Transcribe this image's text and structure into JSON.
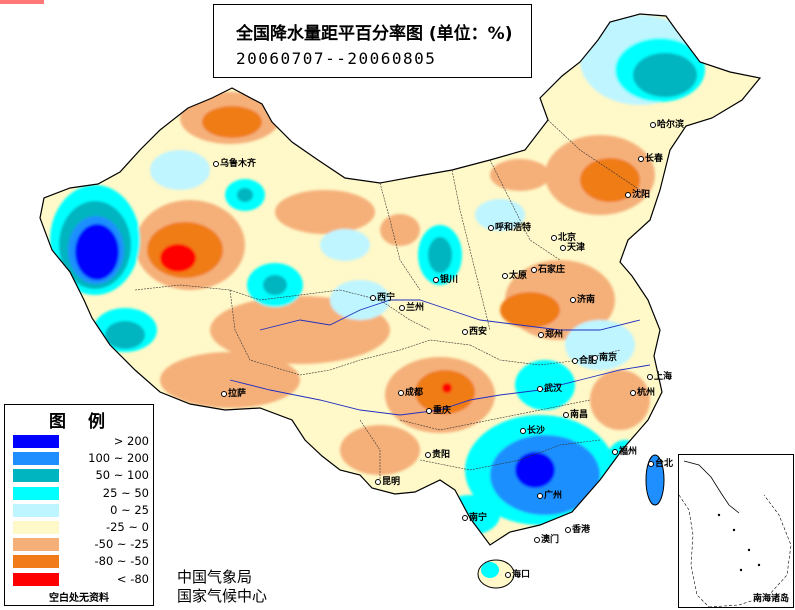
{
  "title": {
    "main": "全国降水量距平百分率图 (单位：%)",
    "dates": "20060707--20060805"
  },
  "legend": {
    "heading": "图例",
    "items": [
      {
        "range": "> 200",
        "color": "#0000ff"
      },
      {
        "range": "100 ~ 200",
        "color": "#1f8fff"
      },
      {
        "range": "50 ~ 100",
        "color": "#00b4c0"
      },
      {
        "range": "25 ~ 50",
        "color": "#00ffff"
      },
      {
        "range": "0 ~ 25",
        "color": "#bff5ff"
      },
      {
        "range": "-25 ~ 0",
        "color": "#fff8c8"
      },
      {
        "range": "-50 ~ -25",
        "color": "#f5b07a"
      },
      {
        "range": "-80 ~ -50",
        "color": "#f07b18"
      },
      {
        "range": "< -80",
        "color": "#ff0000"
      }
    ],
    "note": "空白处无资料"
  },
  "organizations": {
    "line1": "中国气象局",
    "line2": "国家气候中心"
  },
  "inset": {
    "label": "南海诸岛"
  },
  "cities": [
    {
      "name": "乌鲁木齐"
    },
    {
      "name": "哈尔滨"
    },
    {
      "name": "长春"
    },
    {
      "name": "沈阳"
    },
    {
      "name": "呼和浩特"
    },
    {
      "name": "北京"
    },
    {
      "name": "天津"
    },
    {
      "name": "石家庄"
    },
    {
      "name": "太原"
    },
    {
      "name": "银川"
    },
    {
      "name": "济南"
    },
    {
      "name": "西宁"
    },
    {
      "name": "兰州"
    },
    {
      "name": "西安"
    },
    {
      "name": "郑州"
    },
    {
      "name": "合肥"
    },
    {
      "name": "南京"
    },
    {
      "name": "上海"
    },
    {
      "name": "武汉"
    },
    {
      "name": "杭州"
    },
    {
      "name": "成都"
    },
    {
      "name": "重庆"
    },
    {
      "name": "拉萨"
    },
    {
      "name": "长沙"
    },
    {
      "name": "南昌"
    },
    {
      "name": "福州"
    },
    {
      "name": "贵阳"
    },
    {
      "name": "昆明"
    },
    {
      "name": "台北"
    },
    {
      "name": "广州"
    },
    {
      "name": "南宁"
    },
    {
      "name": "香港"
    },
    {
      "name": "澳门"
    },
    {
      "name": "海口"
    }
  ]
}
